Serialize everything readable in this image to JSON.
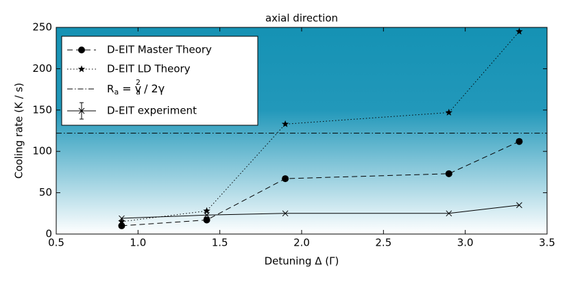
{
  "chart_data": {
    "type": "line",
    "title": "axial direction",
    "xlabel": "Detuning Δ (Γ)",
    "ylabel": "Cooling rate (K / s)",
    "xlim": [
      0.5,
      3.5
    ],
    "ylim": [
      0,
      250
    ],
    "xticks": [
      0.5,
      {
        "value": 1,
        "label": "1.0"
      },
      1.5,
      {
        "value": 2,
        "label": "2.0"
      },
      2.5,
      {
        "value": 3,
        "label": "3.0"
      },
      3.5
    ],
    "yticks": [
      0,
      50,
      100,
      150,
      200,
      250
    ],
    "x": [
      0.9,
      1.42,
      1.9,
      2.9,
      3.33
    ],
    "legend": "upper left",
    "series": [
      {
        "name": "D-EIT Master Theory",
        "color": "#000000",
        "style": "dashed",
        "marker": "circle",
        "values": [
          10,
          17,
          67,
          73,
          112
        ]
      },
      {
        "name": "D-EIT LD Theory",
        "color": "#000000",
        "style": "dotted",
        "marker": "star",
        "values": [
          15,
          28,
          133,
          147,
          245
        ]
      },
      {
        "name": [
          "R",
          "a",
          "= v",
          "a",
          "2",
          "/ 2γ"
        ],
        "color": "#000000",
        "style": "dashdot",
        "marker": "none",
        "hline": 122
      },
      {
        "name": "D-EIT experiment",
        "color": "#000000",
        "style": "solid",
        "marker": "x",
        "values": [
          19,
          23,
          25,
          25,
          35
        ]
      }
    ]
  }
}
